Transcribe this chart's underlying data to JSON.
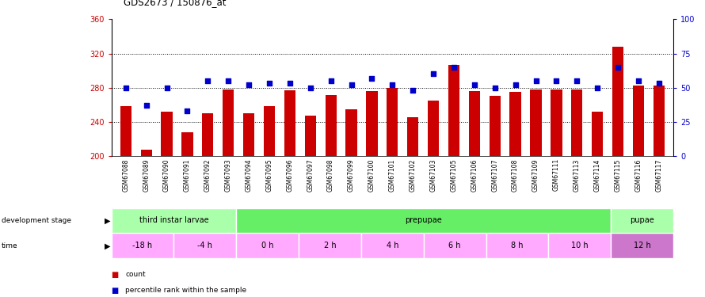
{
  "title": "GDS2673 / 150876_at",
  "samples": [
    "GSM67088",
    "GSM67089",
    "GSM67090",
    "GSM67091",
    "GSM67092",
    "GSM67093",
    "GSM67094",
    "GSM67095",
    "GSM67096",
    "GSM67097",
    "GSM67098",
    "GSM67099",
    "GSM67100",
    "GSM67101",
    "GSM67102",
    "GSM67103",
    "GSM67105",
    "GSM67106",
    "GSM67107",
    "GSM67108",
    "GSM67109",
    "GSM67111",
    "GSM67113",
    "GSM67114",
    "GSM67115",
    "GSM67116",
    "GSM67117"
  ],
  "counts": [
    258,
    207,
    252,
    228,
    250,
    278,
    250,
    258,
    277,
    247,
    271,
    255,
    276,
    280,
    245,
    265,
    307,
    276,
    270,
    275,
    278,
    278,
    278,
    252,
    328,
    282,
    282
  ],
  "percentiles": [
    50,
    37,
    50,
    33,
    55,
    55,
    52,
    53,
    53,
    50,
    55,
    52,
    57,
    52,
    48,
    60,
    65,
    52,
    50,
    52,
    55,
    55,
    55,
    50,
    65,
    55,
    53
  ],
  "bar_color": "#cc0000",
  "dot_color": "#0000cc",
  "ylim_left": [
    200,
    360
  ],
  "ylim_right": [
    0,
    100
  ],
  "yticks_left": [
    200,
    240,
    280,
    320,
    360
  ],
  "yticks_right": [
    0,
    25,
    50,
    75,
    100
  ],
  "tick_label_color_left": "#cc0000",
  "tick_label_color_right": "#0000cc",
  "xticklabel_bg": "#cccccc",
  "stage_row": {
    "label": "development stage",
    "stages": [
      {
        "name": "third instar larvae",
        "start": 0,
        "end": 6,
        "color": "#aaffaa"
      },
      {
        "name": "prepupae",
        "start": 6,
        "end": 24,
        "color": "#66ee66"
      },
      {
        "name": "pupae",
        "start": 24,
        "end": 27,
        "color": "#aaffaa"
      }
    ]
  },
  "time_row": {
    "label": "time",
    "times": [
      {
        "name": "-18 h",
        "start": 0,
        "end": 3,
        "color": "#ffaaff"
      },
      {
        "name": "-4 h",
        "start": 3,
        "end": 6,
        "color": "#ffaaff"
      },
      {
        "name": "0 h",
        "start": 6,
        "end": 9,
        "color": "#ffaaff"
      },
      {
        "name": "2 h",
        "start": 9,
        "end": 12,
        "color": "#ffaaff"
      },
      {
        "name": "4 h",
        "start": 12,
        "end": 15,
        "color": "#ffaaff"
      },
      {
        "name": "6 h",
        "start": 15,
        "end": 18,
        "color": "#ffaaff"
      },
      {
        "name": "8 h",
        "start": 18,
        "end": 21,
        "color": "#ffaaff"
      },
      {
        "name": "10 h",
        "start": 21,
        "end": 24,
        "color": "#ffaaff"
      },
      {
        "name": "12 h",
        "start": 24,
        "end": 27,
        "color": "#cc77cc"
      }
    ]
  },
  "legend": [
    {
      "label": "count",
      "color": "#cc0000"
    },
    {
      "label": "percentile rank within the sample",
      "color": "#0000cc"
    }
  ],
  "n_samples": 27,
  "bar_groups": [
    {
      "label": "-18 h",
      "start": 0,
      "end": 3
    },
    {
      "label": "-4 h",
      "start": 3,
      "end": 6
    },
    {
      "label": "0 h",
      "start": 6,
      "end": 9
    },
    {
      "label": "2 h",
      "start": 9,
      "end": 12
    },
    {
      "label": "4 h",
      "start": 12,
      "end": 15
    },
    {
      "label": "6 h",
      "start": 15,
      "end": 18
    },
    {
      "label": "8 h",
      "start": 18,
      "end": 21
    },
    {
      "label": "10 h",
      "start": 21,
      "end": 24
    },
    {
      "label": "12 h",
      "start": 24,
      "end": 27
    }
  ]
}
